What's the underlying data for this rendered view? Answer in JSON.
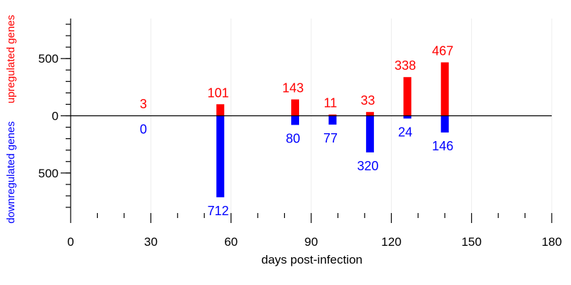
{
  "chart_data": {
    "type": "bar",
    "xlabel": "days post-infection",
    "ylabel_up": "upregulated genes",
    "ylabel_down": "downregulated genes",
    "xlim": [
      0,
      180
    ],
    "ylim": [
      -850,
      850
    ],
    "x_ticks": [
      0,
      30,
      60,
      90,
      120,
      150,
      180
    ],
    "x_minor_ticks": [
      10,
      20,
      40,
      50,
      70,
      80,
      100,
      110,
      130,
      140,
      160,
      170
    ],
    "y_ticks": [
      {
        "value": 500,
        "label": "500"
      },
      {
        "value": 0,
        "label": "0"
      },
      {
        "value": -500,
        "label": "500"
      }
    ],
    "y_minor_step": 100,
    "grid": "vertical",
    "x": [
      28,
      56,
      84,
      98,
      112,
      126,
      140
    ],
    "series": [
      {
        "name": "upregulated genes",
        "color": "#ff0000",
        "values": [
          3,
          101,
          143,
          11,
          33,
          338,
          467
        ]
      },
      {
        "name": "downregulated genes",
        "color": "#0000ff",
        "values": [
          0,
          712,
          80,
          77,
          320,
          24,
          146
        ]
      }
    ]
  }
}
